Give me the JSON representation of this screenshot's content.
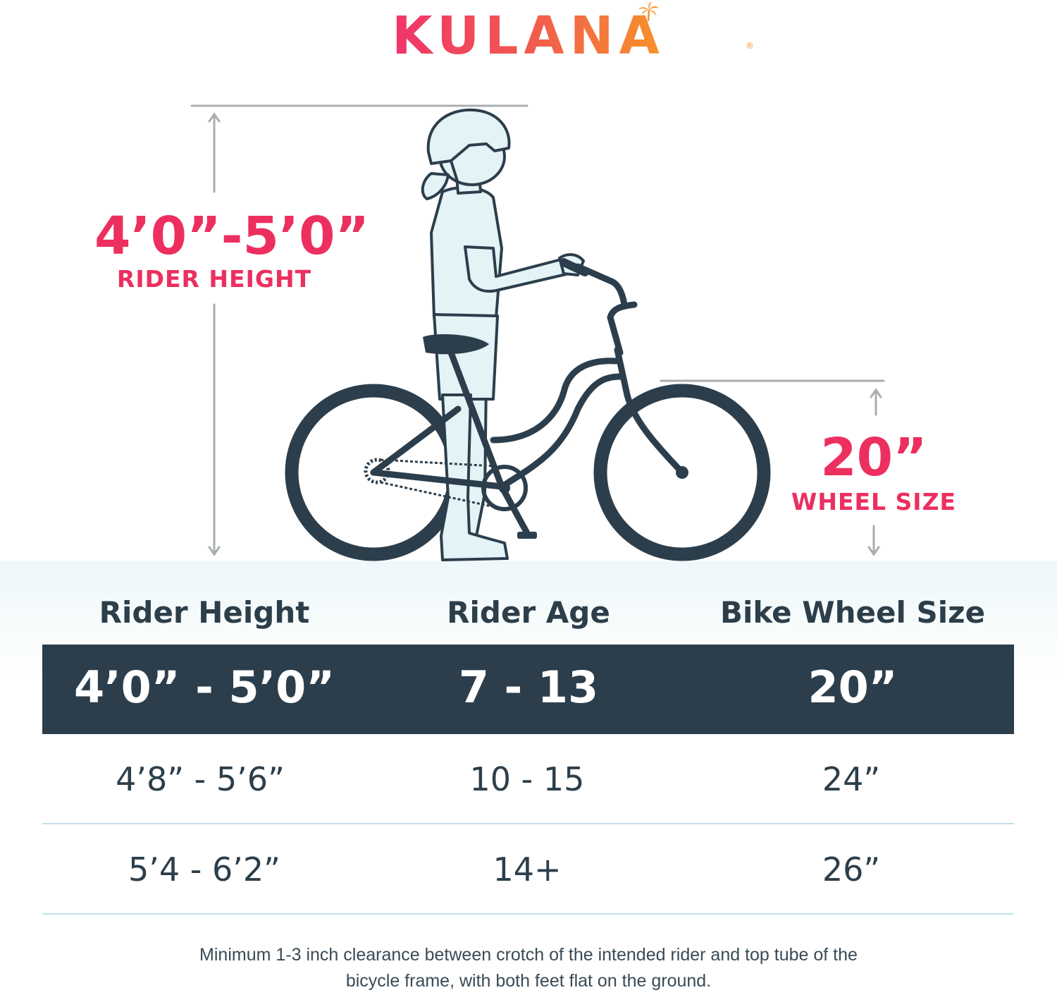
{
  "brand": {
    "logo_text": "KULANA",
    "registered": "®"
  },
  "diagram": {
    "rider_height_value": "4’0”-5’0”",
    "rider_height_label": "RIDER HEIGHT",
    "wheel_size_value": "20”",
    "wheel_size_label": "WHEEL SIZE"
  },
  "table": {
    "headers": [
      "Rider Height",
      "Rider Age",
      "Bike Wheel Size"
    ],
    "highlight_row": [
      "4’0” - 5’0”",
      "7 - 13",
      "20”"
    ],
    "rows": [
      [
        "4’8” - 5’6”",
        "10 - 15",
        "24”"
      ],
      [
        "5’4 - 6’2”",
        "14+",
        "26”"
      ]
    ]
  },
  "note": "Minimum 1-3 inch clearance between crotch of the intended rider and top tube of the bicycle frame, with both feet flat on the ground.",
  "colors": {
    "accent_pink": "#ec2f5f",
    "logo_orange": "#f7932a",
    "dark_navy": "#2c3e4c",
    "rider_fill": "#e3f3f6",
    "dimension_gray": "#a9aeb1"
  }
}
